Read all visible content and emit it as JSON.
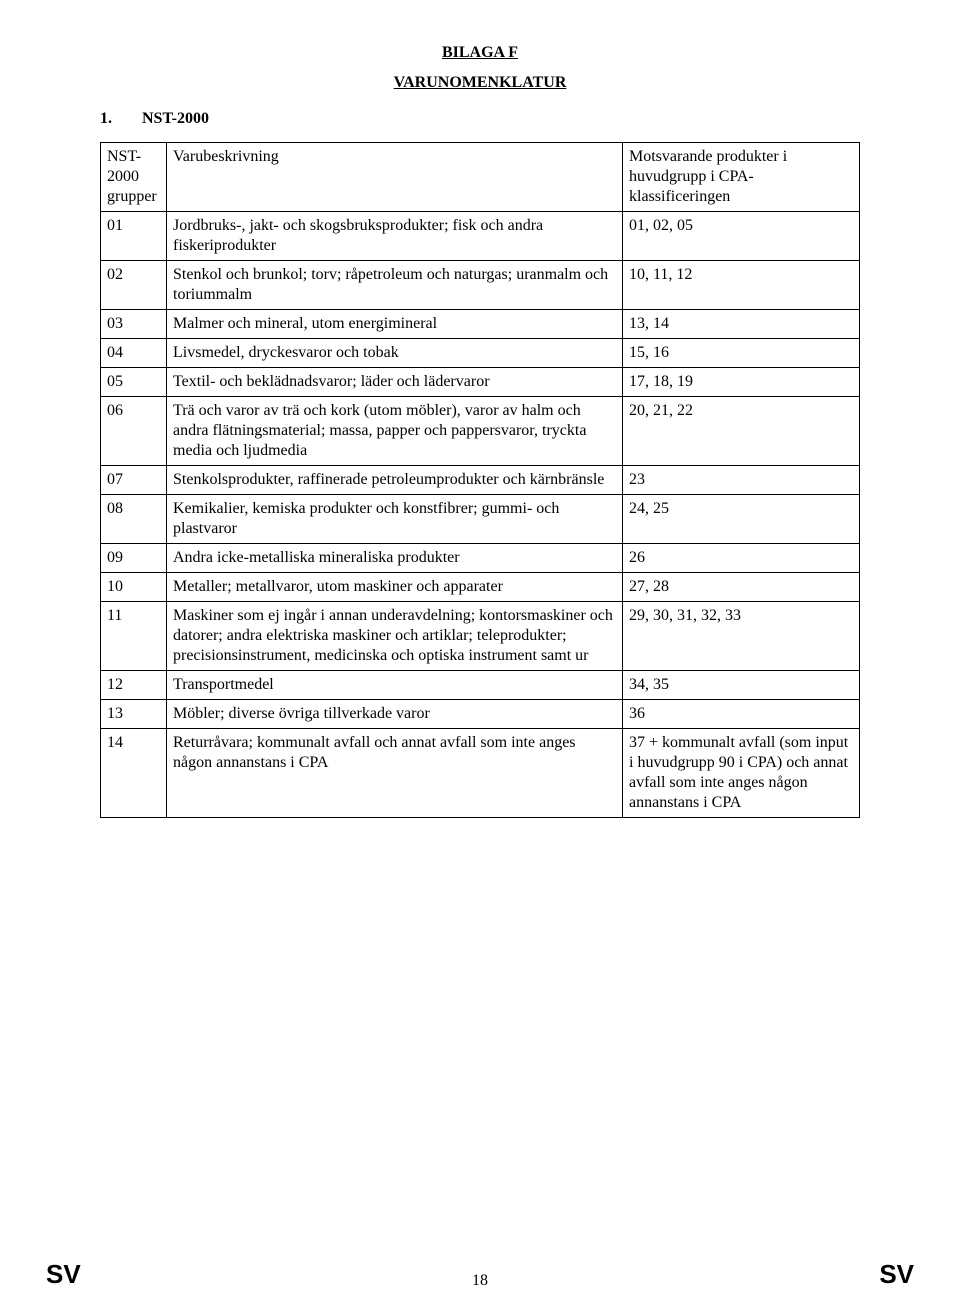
{
  "titles": {
    "appendix": "BILAGA F",
    "subtitle": "VARUNOMENKLATUR"
  },
  "section": {
    "number": "1.",
    "label": "NST-2000"
  },
  "table": {
    "columns": {
      "c1": "NST-2000 grupper",
      "c2": "Varubeskrivning",
      "c3": "Motsvarande produkter i huvudgrupp i CPA-klassificeringen"
    },
    "rows": [
      {
        "code": "01",
        "desc": "Jordbruks-, jakt- och skogsbruksprodukter; fisk och andra fiskeriprodukter",
        "cpa": "01, 02, 05"
      },
      {
        "code": "02",
        "desc": "Stenkol och brunkol; torv; råpetroleum och naturgas; uranmalm och toriummalm",
        "cpa": "10, 11, 12"
      },
      {
        "code": "03",
        "desc": "Malmer och mineral, utom energimineral",
        "cpa": "13, 14"
      },
      {
        "code": "04",
        "desc": "Livsmedel, dryckesvaror och tobak",
        "cpa": "15, 16"
      },
      {
        "code": "05",
        "desc": "Textil- och beklädnadsvaror; läder och lädervaror",
        "cpa": "17, 18, 19"
      },
      {
        "code": "06",
        "desc": "Trä och varor av trä och kork (utom möbler), varor av halm och andra flätningsmaterial; massa, papper och pappersvaror, tryckta media och ljudmedia",
        "cpa": "20, 21, 22"
      },
      {
        "code": "07",
        "desc": "Stenkolsprodukter, raffinerade petroleumprodukter och kärnbränsle",
        "cpa": "23"
      },
      {
        "code": "08",
        "desc": "Kemikalier, kemiska produkter och konstfibrer; gummi- och plastvaror",
        "cpa": "24, 25"
      },
      {
        "code": "09",
        "desc": "Andra icke-metalliska mineraliska produkter",
        "cpa": "26"
      },
      {
        "code": "10",
        "desc": "Metaller; metallvaror, utom maskiner och apparater",
        "cpa": "27, 28"
      },
      {
        "code": "11",
        "desc": "Maskiner som ej ingår i annan underavdelning; kontorsmaskiner och datorer; andra elektriska maskiner och artiklar; teleprodukter; precisionsinstrument, medicinska och optiska instrument samt ur",
        "cpa": "29, 30, 31, 32, 33"
      },
      {
        "code": "12",
        "desc": "Transportmedel",
        "cpa": "34, 35"
      },
      {
        "code": "13",
        "desc": "Möbler; diverse övriga tillverkade varor",
        "cpa": "36"
      },
      {
        "code": "14",
        "desc": "Returråvara; kommunalt avfall och annat avfall som inte anges någon annanstans i CPA",
        "cpa": "37 + kommunalt avfall (som input i huvudgrupp 90 i CPA) och annat avfall som inte anges någon annanstans i CPA"
      }
    ]
  },
  "footer": {
    "left": "SV",
    "page": "18",
    "right": "SV"
  }
}
